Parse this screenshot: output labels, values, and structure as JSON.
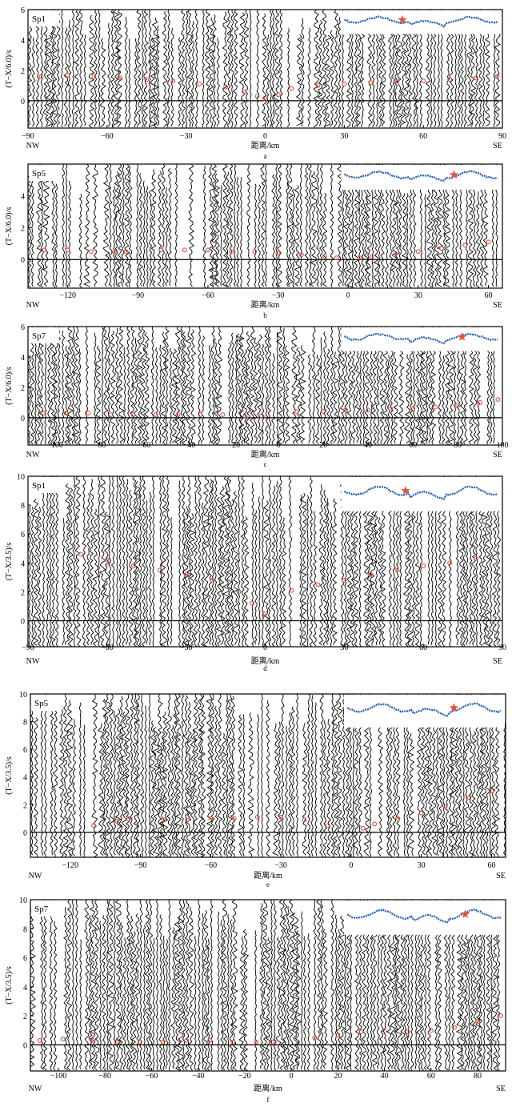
{
  "figure": {
    "xlabel": "距离/km",
    "left_end": "NW",
    "right_end": "SE"
  },
  "colors": {
    "trace": "#000000",
    "pick": "#e8503a",
    "topo": "#1f5fb4",
    "star": "#e8503a"
  },
  "chart_data": [
    {
      "id": "a",
      "type": "scatter",
      "shot": "Sp1",
      "panel_label": "a",
      "ylabel": "(T−X/6.0)/s",
      "xlim": [
        -90,
        90
      ],
      "ylim": [
        -1.8,
        6
      ],
      "xticks": [
        -90,
        -60,
        -30,
        0,
        30,
        60,
        90
      ],
      "yticks": [
        0,
        2,
        4,
        6
      ],
      "series": [
        {
          "x": [
            -85,
            -75,
            -65,
            -55,
            -45,
            -35,
            -25,
            -15,
            -8,
            -3,
            0,
            5,
            10,
            20,
            30,
            40,
            50,
            60,
            70,
            80,
            88
          ],
          "y": [
            1.6,
            1.7,
            1.6,
            1.5,
            1.4,
            1.3,
            1.1,
            0.9,
            0.6,
            0.3,
            0.1,
            0.4,
            0.8,
            1.0,
            1.1,
            1.2,
            1.3,
            1.3,
            1.4,
            1.5,
            1.6
          ]
        }
      ],
      "star_x_frac": 0.62
    },
    {
      "id": "b",
      "type": "scatter",
      "shot": "Sp5",
      "panel_label": "b",
      "ylabel": "(T−X/6.0)/s",
      "xlim": [
        -137,
        66
      ],
      "ylim": [
        -1.8,
        6
      ],
      "xticks": [
        -120,
        -90,
        -60,
        -30,
        0,
        30,
        60
      ],
      "yticks": [
        0,
        2,
        4
      ],
      "series": [
        {
          "x": [
            -130,
            -120,
            -110,
            -100,
            -95,
            -80,
            -70,
            -60,
            -50,
            -40,
            -30,
            -20,
            -10,
            -5,
            5,
            10,
            20,
            30,
            40,
            50,
            60
          ],
          "y": [
            0.6,
            0.6,
            0.5,
            0.5,
            0.5,
            0.6,
            0.6,
            0.6,
            0.5,
            0.5,
            0.4,
            0.3,
            0.2,
            0.1,
            0.1,
            0.2,
            0.3,
            0.5,
            0.7,
            0.9,
            1.1
          ]
        }
      ],
      "star_x_frac": 0.3
    },
    {
      "id": "c",
      "type": "scatter",
      "shot": "Sp7",
      "panel_label": "c",
      "ylabel": "(T−X/6.0)/s",
      "xlim": [
        -112,
        100
      ],
      "ylim": [
        -1.8,
        6
      ],
      "xticks": [
        -100,
        -80,
        -60,
        -40,
        -20,
        0,
        20,
        40,
        60,
        80,
        100
      ],
      "yticks": [
        0,
        2,
        4,
        6
      ],
      "series": [
        {
          "x": [
            -105,
            -95,
            -85,
            -75,
            -65,
            -55,
            -45,
            -35,
            -25,
            -15,
            -8,
            8,
            20,
            30,
            40,
            50,
            60,
            70,
            80,
            90,
            98
          ],
          "y": [
            0.3,
            0.3,
            0.3,
            0.2,
            0.2,
            0.2,
            0.2,
            0.2,
            0.2,
            0.1,
            0.1,
            0.4,
            0.4,
            0.5,
            0.5,
            0.6,
            0.6,
            0.7,
            0.8,
            1.0,
            1.2
          ]
        }
      ],
      "star_x_frac": 0.25
    },
    {
      "id": "d",
      "type": "scatter",
      "shot": "Sp1",
      "panel_label": "d",
      "ylabel": "(T−X/3.5)/s",
      "xlim": [
        -90,
        90
      ],
      "ylim": [
        -1.8,
        10
      ],
      "xticks": [
        -90,
        -60,
        -30,
        0,
        30,
        60,
        90
      ],
      "yticks": [
        0,
        2,
        4,
        6,
        8,
        10
      ],
      "series": [
        {
          "x": [
            -70,
            -60,
            -50,
            -40,
            -30,
            -20,
            -10,
            -5,
            0,
            10,
            20,
            30,
            40,
            50,
            60,
            70,
            80
          ],
          "y": [
            4.6,
            4.2,
            3.8,
            3.5,
            3.2,
            2.8,
            2.0,
            1.2,
            0.5,
            2.1,
            2.5,
            2.8,
            3.2,
            3.5,
            3.8,
            4.0,
            4.3
          ]
        }
      ],
      "star_x_frac": 0.6
    },
    {
      "id": "e",
      "type": "scatter",
      "shot": "Sp5",
      "panel_label": "e",
      "ylabel": "(T−X/3.5)/s",
      "xlim": [
        -137,
        66
      ],
      "ylim": [
        -1.8,
        10
      ],
      "xticks": [
        -120,
        -90,
        -60,
        -30,
        0,
        30,
        60
      ],
      "yticks": [
        0,
        2,
        4,
        6,
        8,
        10
      ],
      "series": [
        {
          "x": [
            -110,
            -100,
            -95,
            -80,
            -70,
            -60,
            -50,
            -40,
            -30,
            -20,
            -10,
            5,
            10,
            20,
            30,
            40,
            50,
            60
          ],
          "y": [
            0.5,
            0.8,
            1.0,
            0.9,
            0.9,
            1.0,
            1.0,
            1.1,
            1.1,
            0.9,
            0.5,
            0.3,
            0.6,
            1.0,
            1.4,
            1.9,
            2.5,
            3.0
          ]
        }
      ],
      "star_x_frac": 0.32
    },
    {
      "id": "f",
      "type": "scatter",
      "shot": "Sp7",
      "panel_label": "f",
      "ylabel": "(T−X/3.5)/s",
      "xlim": [
        -112,
        92
      ],
      "ylim": [
        -1.8,
        10
      ],
      "xticks": [
        -100,
        -80,
        -60,
        -40,
        -20,
        0,
        20,
        40,
        60,
        80
      ],
      "yticks": [
        0,
        2,
        4,
        6,
        8,
        10
      ],
      "series": [
        {
          "x": [
            -108,
            -98,
            -85,
            -75,
            -65,
            -55,
            -45,
            -35,
            -25,
            -15,
            -8,
            10,
            20,
            30,
            40,
            50,
            60,
            70,
            80,
            90
          ],
          "y": [
            0.3,
            0.4,
            0.3,
            0.2,
            0.2,
            0.2,
            0.3,
            0.3,
            0.2,
            0.2,
            0.2,
            0.5,
            0.7,
            0.9,
            1.0,
            0.9,
            1.0,
            1.2,
            1.6,
            2.0
          ]
        }
      ],
      "star_x_frac": 0.25
    }
  ]
}
